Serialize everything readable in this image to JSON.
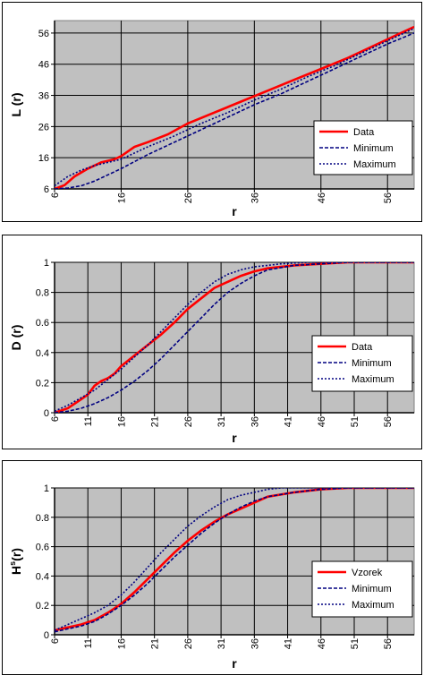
{
  "colors": {
    "plot_bg": "#c0c0c0",
    "grid": "#000000",
    "data_line": "#ff0000",
    "envelope_line": "#000080"
  },
  "chart_data": [
    {
      "type": "line",
      "ylabel": "L (r)",
      "xlabel": "r",
      "xlim": [
        6,
        60
      ],
      "ylim": [
        6,
        60
      ],
      "xticks": [
        "6",
        "16",
        "26",
        "36",
        "46",
        "56"
      ],
      "yticks": [
        "6",
        "16",
        "26",
        "36",
        "46",
        "56"
      ],
      "grid": true,
      "legend_position": "right",
      "series": [
        {
          "name": "Data",
          "style": "solid-red",
          "x": [
            6,
            7.5,
            9,
            11,
            13,
            15,
            16,
            18,
            20,
            23,
            26,
            30,
            34,
            38,
            42,
            46,
            50,
            54,
            58,
            60
          ],
          "y": [
            6,
            7.2,
            10,
            12.5,
            14.5,
            15.5,
            16.5,
            19.5,
            21,
            23.5,
            27,
            30.5,
            34,
            37.5,
            41,
            44.5,
            48,
            52,
            56,
            58
          ]
        },
        {
          "name": "Minimum",
          "style": "dashed-blue",
          "x": [
            6,
            8,
            10,
            12,
            14,
            16,
            20,
            24,
            28,
            32,
            36,
            40,
            44,
            48,
            52,
            56,
            60
          ],
          "y": [
            6,
            6.3,
            7,
            8.5,
            10.5,
            12.5,
            17,
            21,
            25,
            29,
            33,
            36.5,
            40.5,
            44.5,
            48.5,
            52.5,
            56
          ]
        },
        {
          "name": "Maximum",
          "style": "dotted-blue",
          "x": [
            6,
            7,
            8,
            10,
            12,
            14,
            16,
            20,
            24,
            28,
            32,
            36,
            40,
            44,
            48,
            52,
            56,
            60
          ],
          "y": [
            7,
            8.5,
            10,
            12,
            13.5,
            14.5,
            15.5,
            19.5,
            23,
            27,
            30.5,
            34.5,
            38,
            42,
            45.5,
            49.5,
            53.5,
            57.5
          ]
        }
      ]
    },
    {
      "type": "line",
      "ylabel": "D (r)",
      "xlabel": "r",
      "xlim": [
        6,
        60
      ],
      "ylim": [
        0,
        1
      ],
      "xticks": [
        "6",
        "11",
        "16",
        "21",
        "26",
        "31",
        "36",
        "41",
        "46",
        "51",
        "56"
      ],
      "yticks": [
        "0",
        "0.2",
        "0.4",
        "0.6",
        "0.8",
        "1"
      ],
      "grid": true,
      "legend_position": "right",
      "series": [
        {
          "name": "Data",
          "style": "solid-red",
          "x": [
            6,
            8,
            10,
            11,
            12,
            13,
            14,
            15,
            16,
            18,
            20,
            22,
            24,
            26,
            28,
            30,
            32,
            34,
            36,
            38,
            42,
            46,
            50,
            54,
            60
          ],
          "y": [
            0,
            0.03,
            0.09,
            0.12,
            0.18,
            0.21,
            0.23,
            0.26,
            0.31,
            0.38,
            0.45,
            0.52,
            0.6,
            0.69,
            0.76,
            0.83,
            0.87,
            0.91,
            0.94,
            0.96,
            0.98,
            0.99,
            1.0,
            1.0,
            1.0
          ]
        },
        {
          "name": "Minimum",
          "style": "dashed-blue",
          "x": [
            6,
            8,
            10,
            12,
            14,
            16,
            18,
            20,
            22,
            24,
            26,
            28,
            30,
            32,
            34,
            36,
            38,
            42,
            46,
            50,
            56,
            60
          ],
          "y": [
            0,
            0.01,
            0.03,
            0.06,
            0.1,
            0.15,
            0.21,
            0.28,
            0.36,
            0.45,
            0.54,
            0.63,
            0.72,
            0.8,
            0.86,
            0.91,
            0.95,
            0.98,
            0.99,
            1.0,
            1.0,
            1.0
          ]
        },
        {
          "name": "Maximum",
          "style": "dotted-blue",
          "x": [
            6,
            8,
            10,
            12,
            14,
            16,
            18,
            20,
            22,
            24,
            26,
            28,
            30,
            32,
            34,
            36,
            38,
            40,
            44,
            48,
            54,
            60
          ],
          "y": [
            0.01,
            0.05,
            0.1,
            0.15,
            0.22,
            0.29,
            0.37,
            0.45,
            0.54,
            0.63,
            0.72,
            0.8,
            0.87,
            0.92,
            0.95,
            0.97,
            0.98,
            0.99,
            1.0,
            1.0,
            1.0,
            1.0
          ]
        }
      ]
    },
    {
      "type": "line",
      "ylabel": "H",
      "ylabel_sup": "s",
      "ylabel_suffix": "(r)",
      "xlabel": "r",
      "xlim": [
        6,
        60
      ],
      "ylim": [
        0,
        1
      ],
      "xticks": [
        "6",
        "11",
        "16",
        "21",
        "26",
        "31",
        "36",
        "41",
        "46",
        "51",
        "56"
      ],
      "yticks": [
        "0",
        "0.2",
        "0.4",
        "0.6",
        "0.8",
        "1"
      ],
      "grid": true,
      "legend_position": "right",
      "series": [
        {
          "name": "Vzorek",
          "style": "solid-red",
          "x": [
            6,
            8,
            10,
            12,
            14,
            16,
            18,
            20,
            22,
            24,
            26,
            28,
            30,
            32,
            34,
            36,
            38,
            42,
            46,
            50,
            56,
            60
          ],
          "y": [
            0.03,
            0.05,
            0.07,
            0.1,
            0.15,
            0.21,
            0.29,
            0.38,
            0.47,
            0.56,
            0.64,
            0.71,
            0.77,
            0.82,
            0.86,
            0.9,
            0.94,
            0.97,
            0.99,
            1.0,
            1.0,
            1.0
          ]
        },
        {
          "name": "Minimum",
          "style": "dashed-blue",
          "x": [
            6,
            8,
            10,
            12,
            14,
            16,
            18,
            20,
            22,
            24,
            26,
            28,
            30,
            32,
            34,
            36,
            38,
            42,
            46,
            50,
            56,
            60
          ],
          "y": [
            0.02,
            0.04,
            0.06,
            0.09,
            0.14,
            0.2,
            0.27,
            0.35,
            0.44,
            0.53,
            0.61,
            0.69,
            0.76,
            0.82,
            0.87,
            0.91,
            0.94,
            0.97,
            0.99,
            1.0,
            1.0,
            1.0
          ]
        },
        {
          "name": "Maximum",
          "style": "dotted-blue",
          "x": [
            6,
            8,
            10,
            12,
            14,
            16,
            18,
            20,
            22,
            24,
            26,
            28,
            30,
            32,
            34,
            36,
            38,
            40,
            44,
            48,
            54,
            60
          ],
          "y": [
            0.03,
            0.07,
            0.11,
            0.15,
            0.2,
            0.27,
            0.36,
            0.46,
            0.56,
            0.65,
            0.74,
            0.81,
            0.87,
            0.92,
            0.95,
            0.97,
            0.99,
            1.0,
            1.0,
            1.0,
            1.0,
            1.0
          ]
        }
      ]
    }
  ]
}
